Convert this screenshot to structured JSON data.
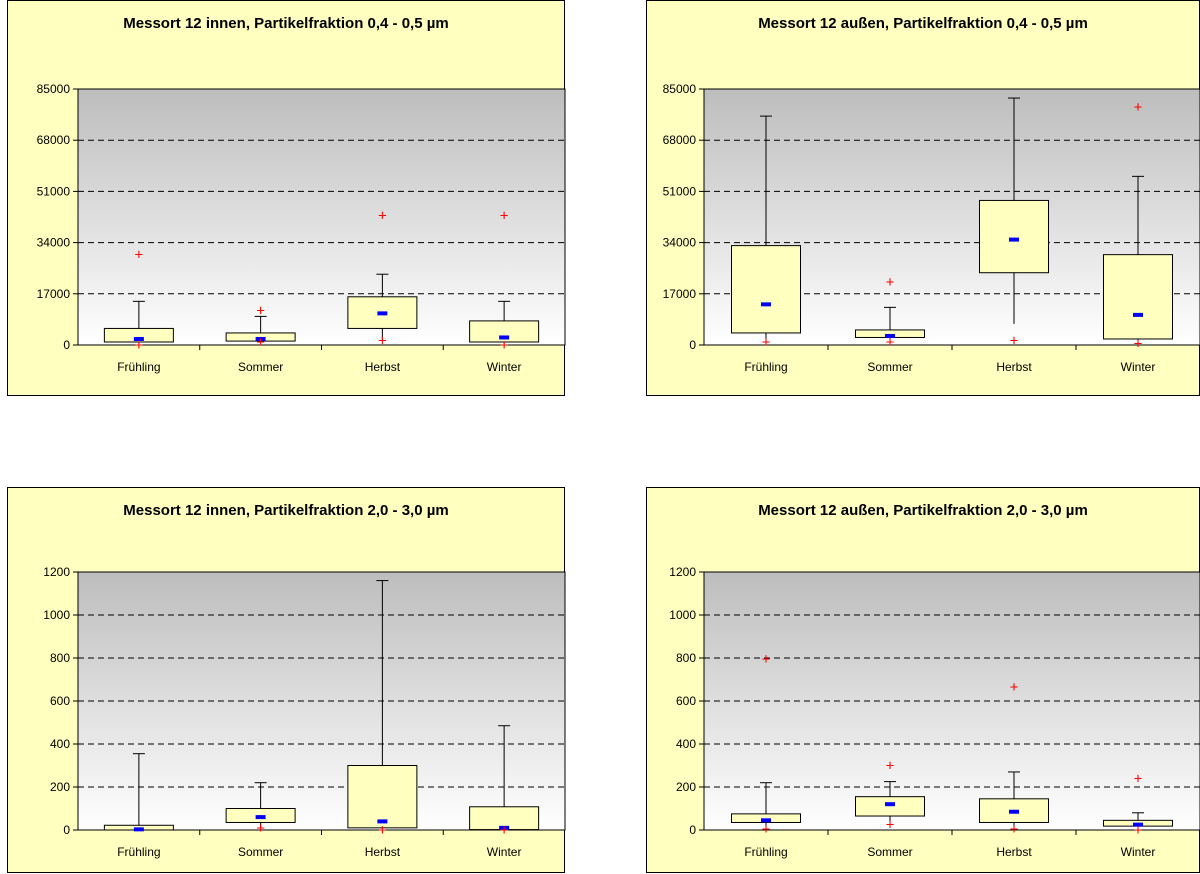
{
  "chart_data": [
    {
      "type": "boxplot",
      "title": "Messort 12 innen, Partikelfraktion 0,4 - 0,5 µm",
      "categories": [
        "Frühling",
        "Sommer",
        "Herbst",
        "Winter"
      ],
      "ylim": [
        0,
        85000
      ],
      "yticks": [
        "0",
        "17000",
        "34000",
        "51000",
        "68000",
        "85000"
      ],
      "grid": true,
      "boxes": [
        {
          "whisker_low": 1000,
          "q1": 1000,
          "median": 2000,
          "q3": 5500,
          "whisker_high": 14500,
          "outliers_high": [
            30000
          ],
          "outliers_low": [
            0
          ]
        },
        {
          "whisker_low": 1000,
          "q1": 1300,
          "median": 2000,
          "q3": 4000,
          "whisker_high": 9500,
          "outliers_high": [
            11500
          ],
          "outliers_low": [
            1000
          ]
        },
        {
          "whisker_low": 1500,
          "q1": 5500,
          "median": 10500,
          "q3": 16000,
          "whisker_high": 23500,
          "outliers_high": [
            43000
          ],
          "outliers_low": [
            1500
          ]
        },
        {
          "whisker_low": 500,
          "q1": 1000,
          "median": 2500,
          "q3": 8000,
          "whisker_high": 14500,
          "outliers_high": [
            43000
          ],
          "outliers_low": [
            0
          ]
        }
      ]
    },
    {
      "type": "boxplot",
      "title": "Messort 12 außen, Partikelfraktion 0,4 - 0,5 µm",
      "categories": [
        "Frühling",
        "Sommer",
        "Herbst",
        "Winter"
      ],
      "ylim": [
        0,
        85000
      ],
      "yticks": [
        "0",
        "17000",
        "34000",
        "51000",
        "68000",
        "85000"
      ],
      "grid": true,
      "boxes": [
        {
          "whisker_low": 1500,
          "q1": 4000,
          "median": 13500,
          "q3": 33000,
          "whisker_high": 76000,
          "outliers_high": [],
          "outliers_low": [
            1000
          ]
        },
        {
          "whisker_low": 1500,
          "q1": 2500,
          "median": 3000,
          "q3": 5000,
          "whisker_high": 12500,
          "outliers_high": [
            21000
          ],
          "outliers_low": [
            1000
          ]
        },
        {
          "whisker_low": 7000,
          "q1": 24000,
          "median": 35000,
          "q3": 48000,
          "whisker_high": 82000,
          "outliers_high": [],
          "outliers_low": [
            1500
          ]
        },
        {
          "whisker_low": 1000,
          "q1": 2000,
          "median": 10000,
          "q3": 30000,
          "whisker_high": 56000,
          "outliers_high": [
            79000
          ],
          "outliers_low": [
            500
          ]
        }
      ]
    },
    {
      "type": "boxplot",
      "title": "Messort 12 innen, Partikelfraktion 2,0 - 3,0 µm",
      "categories": [
        "Frühling",
        "Sommer",
        "Herbst",
        "Winter"
      ],
      "ylim": [
        0,
        1200
      ],
      "yticks": [
        "0",
        "200",
        "400",
        "600",
        "800",
        "1000",
        "1200"
      ],
      "grid": true,
      "boxes": [
        {
          "whisker_low": 0,
          "q1": 0,
          "median": 3,
          "q3": 22,
          "whisker_high": 355,
          "outliers_high": [],
          "outliers_low": []
        },
        {
          "whisker_low": 10,
          "q1": 35,
          "median": 60,
          "q3": 100,
          "whisker_high": 220,
          "outliers_high": [],
          "outliers_low": [
            10
          ]
        },
        {
          "whisker_low": 5,
          "q1": 10,
          "median": 40,
          "q3": 300,
          "whisker_high": 1160,
          "outliers_high": [],
          "outliers_low": [
            0
          ]
        },
        {
          "whisker_low": 0,
          "q1": 2,
          "median": 10,
          "q3": 108,
          "whisker_high": 485,
          "outliers_high": [],
          "outliers_low": [
            0
          ]
        }
      ]
    },
    {
      "type": "boxplot",
      "title": "Messort 12 außen, Partikelfraktion 2,0 - 3,0 µm",
      "categories": [
        "Frühling",
        "Sommer",
        "Herbst",
        "Winter"
      ],
      "ylim": [
        0,
        1200
      ],
      "yticks": [
        "0",
        "200",
        "400",
        "600",
        "800",
        "1000",
        "1200"
      ],
      "grid": true,
      "boxes": [
        {
          "whisker_low": 15,
          "q1": 35,
          "median": 45,
          "q3": 75,
          "whisker_high": 220,
          "outliers_high": [
            795
          ],
          "outliers_low": [
            5
          ]
        },
        {
          "whisker_low": 40,
          "q1": 65,
          "median": 120,
          "q3": 155,
          "whisker_high": 225,
          "outliers_high": [
            300
          ],
          "outliers_low": [
            25
          ]
        },
        {
          "whisker_low": 20,
          "q1": 35,
          "median": 85,
          "q3": 145,
          "whisker_high": 270,
          "outliers_high": [
            665
          ],
          "outliers_low": [
            5
          ]
        },
        {
          "whisker_low": 10,
          "q1": 18,
          "median": 25,
          "q3": 45,
          "whisker_high": 80,
          "outliers_high": [
            240
          ],
          "outliers_low": [
            0
          ]
        }
      ]
    }
  ]
}
